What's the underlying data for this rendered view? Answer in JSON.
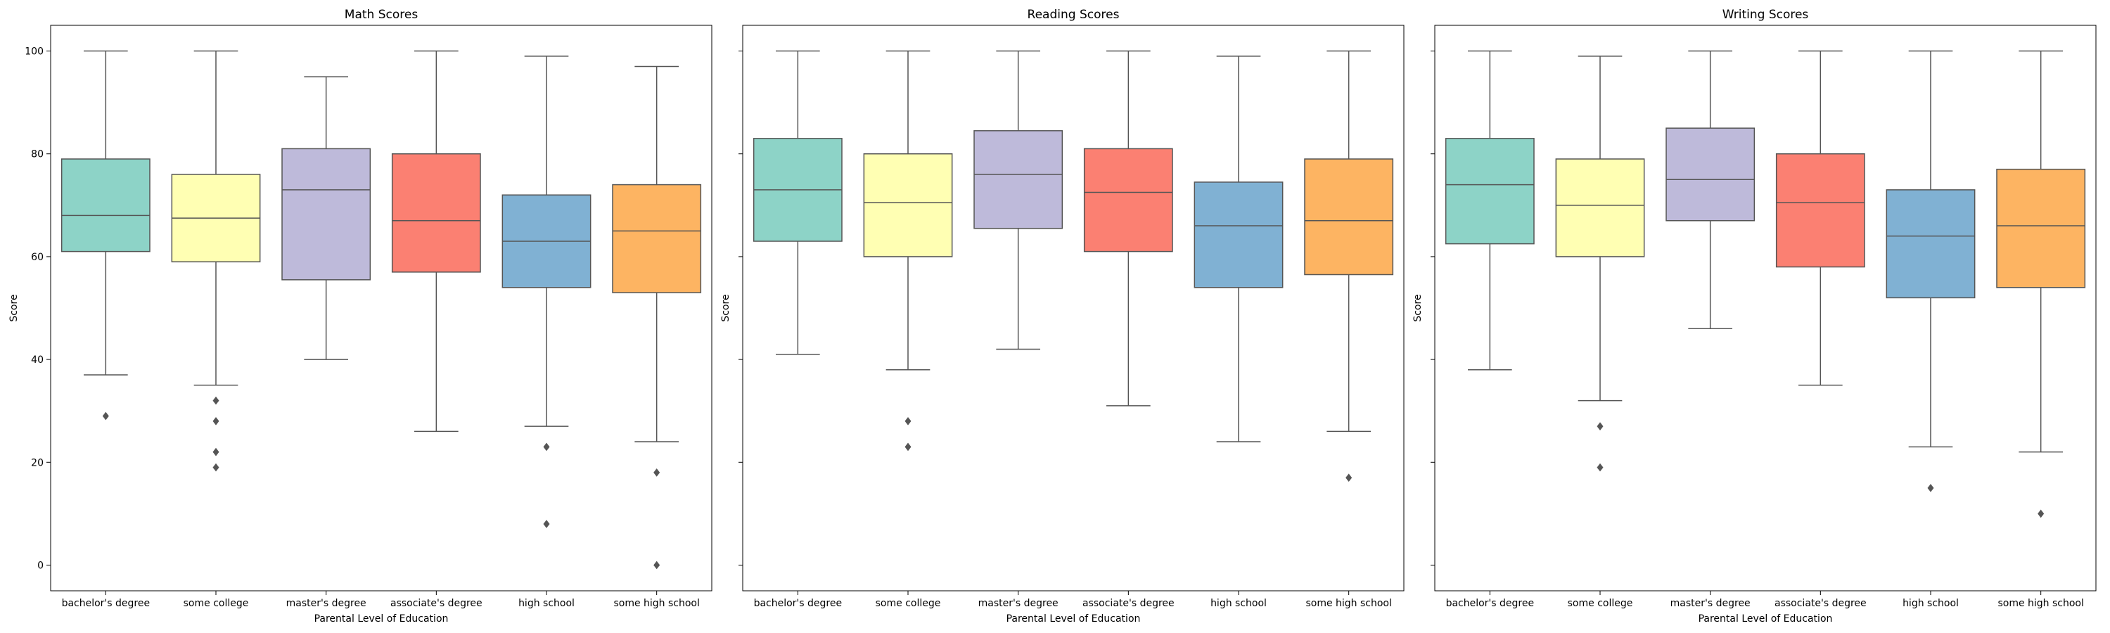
{
  "chart_data": [
    {
      "type": "box",
      "title": "Math Scores",
      "xlabel": "Parental Level of Education",
      "ylabel": "Score",
      "ylim": [
        -5,
        105
      ],
      "yticks": [
        0,
        20,
        40,
        60,
        80,
        100
      ],
      "categories": [
        "bachelor's degree",
        "some college",
        "master's degree",
        "associate's degree",
        "high school",
        "some high school"
      ],
      "colors": [
        "#8dd3c7",
        "#ffffb3",
        "#bebada",
        "#fb8072",
        "#80b1d3",
        "#fdb462"
      ],
      "boxes": [
        {
          "whisker_low": 37,
          "q1": 61,
          "median": 68,
          "q3": 79,
          "whisker_high": 100,
          "outliers": [
            29
          ]
        },
        {
          "whisker_low": 35,
          "q1": 59,
          "median": 67.5,
          "q3": 76,
          "whisker_high": 100,
          "outliers": [
            32,
            28,
            22,
            19
          ]
        },
        {
          "whisker_low": 40,
          "q1": 55.5,
          "median": 73,
          "q3": 81,
          "whisker_high": 95,
          "outliers": []
        },
        {
          "whisker_low": 26,
          "q1": 57,
          "median": 67,
          "q3": 80,
          "whisker_high": 100,
          "outliers": []
        },
        {
          "whisker_low": 27,
          "q1": 54,
          "median": 63,
          "q3": 72,
          "whisker_high": 99,
          "outliers": [
            23,
            8
          ]
        },
        {
          "whisker_low": 24,
          "q1": 53,
          "median": 65,
          "q3": 74,
          "whisker_high": 97,
          "outliers": [
            18,
            0
          ]
        }
      ]
    },
    {
      "type": "box",
      "title": "Reading Scores",
      "xlabel": "Parental Level of Education",
      "ylabel": "Score",
      "ylim": [
        -5,
        105
      ],
      "yticks": [
        0,
        20,
        40,
        60,
        80,
        100
      ],
      "categories": [
        "bachelor's degree",
        "some college",
        "master's degree",
        "associate's degree",
        "high school",
        "some high school"
      ],
      "colors": [
        "#8dd3c7",
        "#ffffb3",
        "#bebada",
        "#fb8072",
        "#80b1d3",
        "#fdb462"
      ],
      "boxes": [
        {
          "whisker_low": 41,
          "q1": 63,
          "median": 73,
          "q3": 83,
          "whisker_high": 100,
          "outliers": []
        },
        {
          "whisker_low": 38,
          "q1": 60,
          "median": 70.5,
          "q3": 80,
          "whisker_high": 100,
          "outliers": [
            28,
            23
          ]
        },
        {
          "whisker_low": 42,
          "q1": 65.5,
          "median": 76,
          "q3": 84.5,
          "whisker_high": 100,
          "outliers": []
        },
        {
          "whisker_low": 31,
          "q1": 61,
          "median": 72.5,
          "q3": 81,
          "whisker_high": 100,
          "outliers": []
        },
        {
          "whisker_low": 24,
          "q1": 54,
          "median": 66,
          "q3": 74.5,
          "whisker_high": 99,
          "outliers": []
        },
        {
          "whisker_low": 26,
          "q1": 56.5,
          "median": 67,
          "q3": 79,
          "whisker_high": 100,
          "outliers": [
            17
          ]
        }
      ]
    },
    {
      "type": "box",
      "title": "Writing Scores",
      "xlabel": "Parental Level of Education",
      "ylabel": "Score",
      "ylim": [
        -5,
        105
      ],
      "yticks": [
        0,
        20,
        40,
        60,
        80,
        100
      ],
      "categories": [
        "bachelor's degree",
        "some college",
        "master's degree",
        "associate's degree",
        "high school",
        "some high school"
      ],
      "colors": [
        "#8dd3c7",
        "#ffffb3",
        "#bebada",
        "#fb8072",
        "#80b1d3",
        "#fdb462"
      ],
      "boxes": [
        {
          "whisker_low": 38,
          "q1": 62.5,
          "median": 74,
          "q3": 83,
          "whisker_high": 100,
          "outliers": []
        },
        {
          "whisker_low": 32,
          "q1": 60,
          "median": 70,
          "q3": 79,
          "whisker_high": 99,
          "outliers": [
            27,
            19
          ]
        },
        {
          "whisker_low": 46,
          "q1": 67,
          "median": 75,
          "q3": 85,
          "whisker_high": 100,
          "outliers": []
        },
        {
          "whisker_low": 35,
          "q1": 58,
          "median": 70.5,
          "q3": 80,
          "whisker_high": 100,
          "outliers": []
        },
        {
          "whisker_low": 23,
          "q1": 52,
          "median": 64,
          "q3": 73,
          "whisker_high": 100,
          "outliers": [
            15
          ]
        },
        {
          "whisker_low": 22,
          "q1": 54,
          "median": 66,
          "q3": 77,
          "whisker_high": 100,
          "outliers": [
            10
          ]
        }
      ]
    }
  ]
}
